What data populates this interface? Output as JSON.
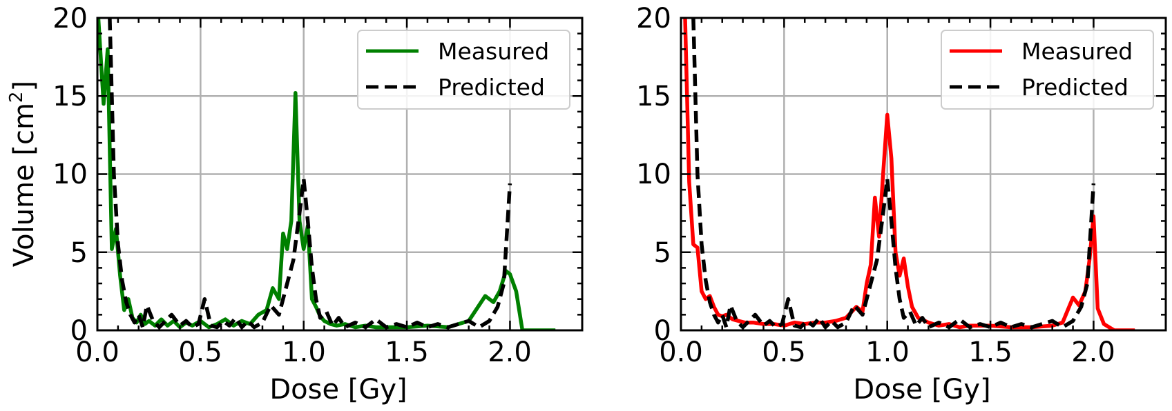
{
  "chart_data": [
    {
      "type": "line",
      "xlabel": "Dose [Gy]",
      "ylabel_main": "Volume [cm",
      "ylabel_sup": "2",
      "ylabel_end": "]",
      "xlim": [
        0,
        2.35
      ],
      "ylim": [
        0,
        20
      ],
      "xticks": [
        "0.0",
        "0.5",
        "1.0",
        "1.5",
        "2.0"
      ],
      "yticks": [
        "0",
        "5",
        "10",
        "15",
        "20"
      ],
      "grid": true,
      "legend_position": "top-right",
      "series": [
        {
          "name": "Measured",
          "color": "#008000",
          "style": "solid",
          "x": [
            0.0,
            0.03,
            0.05,
            0.07,
            0.09,
            0.11,
            0.13,
            0.15,
            0.17,
            0.19,
            0.21,
            0.23,
            0.25,
            0.28,
            0.31,
            0.34,
            0.37,
            0.4,
            0.43,
            0.46,
            0.5,
            0.54,
            0.58,
            0.62,
            0.66,
            0.7,
            0.74,
            0.78,
            0.82,
            0.85,
            0.88,
            0.9,
            0.92,
            0.94,
            0.96,
            0.98,
            1.0,
            1.02,
            1.04,
            1.06,
            1.08,
            1.1,
            1.13,
            1.16,
            1.2,
            1.25,
            1.3,
            1.35,
            1.4,
            1.5,
            1.6,
            1.7,
            1.8,
            1.88,
            1.92,
            1.95,
            1.98,
            2.0,
            2.03,
            2.06,
            2.1,
            2.22
          ],
          "values": [
            21,
            14.5,
            18,
            5.2,
            6.5,
            3.5,
            1.3,
            2.0,
            0.8,
            0.5,
            1.0,
            0.4,
            0.6,
            0.3,
            0.7,
            0.3,
            0.6,
            0.2,
            0.5,
            0.3,
            0.6,
            0.2,
            0.4,
            0.7,
            0.3,
            0.6,
            0.4,
            1.0,
            1.3,
            2.7,
            2.0,
            6.2,
            5.2,
            7.0,
            15.2,
            7.0,
            5.2,
            6.7,
            2.0,
            1.5,
            0.9,
            0.6,
            0.4,
            0.3,
            0.4,
            0.2,
            0.3,
            0.2,
            0.2,
            0.2,
            0.3,
            0.2,
            0.6,
            2.2,
            1.8,
            2.5,
            3.8,
            3.6,
            2.5,
            0.0,
            0.0,
            0.0
          ]
        },
        {
          "name": "Predicted",
          "color": "#000000",
          "style": "dashed",
          "x": [
            0.06,
            0.07,
            0.08,
            0.1,
            0.12,
            0.14,
            0.16,
            0.18,
            0.2,
            0.22,
            0.24,
            0.27,
            0.3,
            0.33,
            0.36,
            0.4,
            0.43,
            0.46,
            0.49,
            0.52,
            0.55,
            0.58,
            0.61,
            0.64,
            0.67,
            0.7,
            0.73,
            0.76,
            0.8,
            0.84,
            0.88,
            0.92,
            0.95,
            0.98,
            1.0,
            1.02,
            1.04,
            1.06,
            1.08,
            1.11,
            1.14,
            1.17,
            1.2,
            1.25,
            1.3,
            1.35,
            1.4,
            1.45,
            1.5,
            1.55,
            1.6,
            1.65,
            1.7,
            1.75,
            1.8,
            1.85,
            1.9,
            1.94,
            1.97,
            2.0
          ],
          "values": [
            20,
            15,
            10,
            5.5,
            3.2,
            1.8,
            1.0,
            0.5,
            1.0,
            0.2,
            1.6,
            0.6,
            0.2,
            0.6,
            1.0,
            0.3,
            0.6,
            0.2,
            0.4,
            2.0,
            0.3,
            0.2,
            0.6,
            0.3,
            0.8,
            0.2,
            0.6,
            0.2,
            0.5,
            1.6,
            1.0,
            3.0,
            4.5,
            7.5,
            9.7,
            7.0,
            4.0,
            2.0,
            0.8,
            1.2,
            0.3,
            0.8,
            0.2,
            0.5,
            0.2,
            0.7,
            0.2,
            0.4,
            0.2,
            0.5,
            0.2,
            0.4,
            0.2,
            0.4,
            0.6,
            0.2,
            0.6,
            1.5,
            3.0,
            9.4
          ]
        }
      ]
    },
    {
      "type": "line",
      "xlabel": "Dose [Gy]",
      "xlim": [
        0,
        2.35
      ],
      "ylim": [
        0,
        20
      ],
      "xticks": [
        "0.0",
        "0.5",
        "1.0",
        "1.5",
        "2.0"
      ],
      "yticks": [
        "0",
        "5",
        "10",
        "15",
        "20"
      ],
      "grid": true,
      "legend_position": "top-right",
      "series": [
        {
          "name": "Measured",
          "color": "#ff0000",
          "style": "solid",
          "x": [
            0.02,
            0.04,
            0.06,
            0.08,
            0.1,
            0.12,
            0.14,
            0.16,
            0.18,
            0.2,
            0.22,
            0.25,
            0.28,
            0.31,
            0.35,
            0.4,
            0.45,
            0.5,
            0.55,
            0.6,
            0.65,
            0.7,
            0.75,
            0.8,
            0.85,
            0.88,
            0.9,
            0.92,
            0.94,
            0.96,
            0.98,
            1.0,
            1.02,
            1.04,
            1.06,
            1.08,
            1.1,
            1.12,
            1.15,
            1.2,
            1.25,
            1.3,
            1.35,
            1.4,
            1.5,
            1.6,
            1.7,
            1.8,
            1.85,
            1.9,
            1.93,
            1.96,
            1.98,
            2.0,
            2.02,
            2.05,
            2.1,
            2.2
          ],
          "values": [
            20,
            9.5,
            5.5,
            5.3,
            2.5,
            2.0,
            2.2,
            1.5,
            1.0,
            0.9,
            1.0,
            0.7,
            0.6,
            0.5,
            0.5,
            0.4,
            0.4,
            0.3,
            0.5,
            0.4,
            0.5,
            0.5,
            0.6,
            0.8,
            1.5,
            1.2,
            3.0,
            4.2,
            8.5,
            6.0,
            10.0,
            13.8,
            11.0,
            5.0,
            3.5,
            4.6,
            2.8,
            1.5,
            0.8,
            0.5,
            0.3,
            0.4,
            0.2,
            0.3,
            0.3,
            0.2,
            0.2,
            0.3,
            0.5,
            2.1,
            1.6,
            2.5,
            4.5,
            7.3,
            1.4,
            0.4,
            0.0,
            0.0
          ]
        },
        {
          "name": "Predicted",
          "color": "#000000",
          "style": "dashed",
          "x": [
            0.06,
            0.07,
            0.08,
            0.1,
            0.12,
            0.14,
            0.16,
            0.18,
            0.2,
            0.22,
            0.24,
            0.27,
            0.3,
            0.33,
            0.36,
            0.4,
            0.43,
            0.46,
            0.49,
            0.52,
            0.55,
            0.58,
            0.61,
            0.64,
            0.67,
            0.7,
            0.73,
            0.76,
            0.8,
            0.84,
            0.88,
            0.92,
            0.95,
            0.98,
            1.0,
            1.02,
            1.04,
            1.06,
            1.08,
            1.11,
            1.14,
            1.17,
            1.2,
            1.25,
            1.3,
            1.35,
            1.4,
            1.45,
            1.5,
            1.55,
            1.6,
            1.65,
            1.7,
            1.75,
            1.8,
            1.85,
            1.9,
            1.94,
            1.97,
            2.0
          ],
          "values": [
            20,
            15,
            10,
            5.5,
            3.2,
            1.8,
            1.0,
            0.5,
            1.0,
            0.2,
            1.6,
            0.6,
            0.2,
            0.6,
            1.0,
            0.3,
            0.6,
            0.2,
            0.4,
            2.0,
            0.3,
            0.2,
            0.6,
            0.3,
            0.8,
            0.2,
            0.6,
            0.2,
            0.5,
            1.6,
            1.0,
            3.0,
            4.5,
            7.5,
            9.7,
            7.0,
            4.0,
            2.0,
            0.8,
            1.2,
            0.3,
            0.8,
            0.2,
            0.5,
            0.2,
            0.7,
            0.2,
            0.4,
            0.2,
            0.5,
            0.2,
            0.4,
            0.2,
            0.4,
            0.6,
            0.2,
            0.6,
            1.5,
            3.0,
            9.4
          ]
        }
      ]
    }
  ]
}
